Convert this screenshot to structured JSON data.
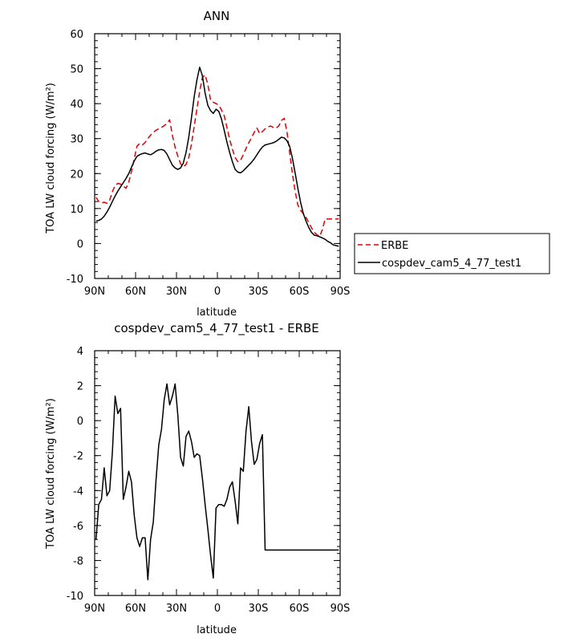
{
  "chart_data": [
    {
      "type": "line",
      "title": "ANN",
      "xlabel": "latitude",
      "ylabel": "TOA LW cloud forcing (W/m²)",
      "xlim": [
        90,
        -90
      ],
      "ylim": [
        -10,
        60
      ],
      "xticks": [
        {
          "value": 90,
          "label": "90N"
        },
        {
          "value": 60,
          "label": "60N"
        },
        {
          "value": 30,
          "label": "30N"
        },
        {
          "value": 0,
          "label": "0"
        },
        {
          "value": -30,
          "label": "30S"
        },
        {
          "value": -60,
          "label": "60S"
        },
        {
          "value": -90,
          "label": "90S"
        }
      ],
      "yticks": [
        {
          "value": -10,
          "label": "-10"
        },
        {
          "value": 0,
          "label": "0"
        },
        {
          "value": 10,
          "label": "10"
        },
        {
          "value": 20,
          "label": "20"
        },
        {
          "value": 30,
          "label": "30"
        },
        {
          "value": 40,
          "label": "40"
        },
        {
          "value": 50,
          "label": "50"
        },
        {
          "value": 60,
          "label": "60"
        }
      ],
      "legend": {
        "position": "right"
      },
      "series": [
        {
          "name": "ERBE",
          "color": "#e00000",
          "dash": true,
          "x": [
            89,
            87,
            85,
            83,
            81,
            79,
            77,
            75,
            73,
            71,
            69,
            67,
            65,
            63,
            61,
            59,
            57,
            55,
            53,
            51,
            49,
            47,
            45,
            43,
            41,
            39,
            37,
            35,
            33,
            31,
            29,
            27,
            25,
            23,
            21,
            19,
            17,
            15,
            13,
            11,
            9,
            7,
            5,
            3,
            1,
            -1,
            -3,
            -5,
            -7,
            -9,
            -11,
            -13,
            -15,
            -17,
            -19,
            -21,
            -23,
            -25,
            -27,
            -29,
            -31,
            -33,
            -35,
            -37,
            -39,
            -41,
            -43,
            -45,
            -47,
            -49,
            -51,
            -53,
            -55,
            -57,
            -59,
            -61,
            -63,
            -65,
            -67,
            -69,
            -71,
            -73,
            -75,
            -77,
            -79,
            -81,
            -83,
            -85,
            -87,
            -89
          ],
          "y": [
            13.2,
            12.0,
            11.6,
            11.8,
            11.5,
            12.4,
            14.8,
            16.6,
            17.2,
            17.0,
            16.4,
            15.8,
            17.5,
            20.6,
            24.2,
            27.8,
            28.6,
            28.2,
            28.9,
            30.0,
            31.0,
            31.8,
            32.4,
            32.8,
            33.2,
            33.7,
            34.3,
            35.4,
            31.0,
            27.5,
            25.0,
            22.8,
            22.0,
            22.6,
            24.5,
            28.5,
            33.5,
            38.5,
            43.5,
            47.5,
            48.2,
            45.5,
            41.0,
            40.4,
            40.0,
            39.6,
            38.2,
            36.6,
            33.2,
            29.8,
            27.0,
            24.6,
            23.4,
            23.8,
            25.4,
            27.2,
            28.8,
            30.2,
            31.8,
            33.0,
            31.4,
            32.0,
            32.8,
            33.3,
            33.6,
            33.2,
            33.0,
            33.6,
            35.2,
            35.8,
            32.0,
            26.0,
            20.0,
            15.0,
            11.0,
            9.5,
            8.5,
            7.5,
            6.0,
            4.5,
            3.2,
            2.5,
            2.0,
            4.0,
            7.0,
            7.0,
            7.0,
            7.0,
            7.0,
            7.0
          ]
        },
        {
          "name": "cospdev_cam5_4_77_test1",
          "color": "#000000",
          "dash": false,
          "x": [
            89,
            87,
            85,
            83,
            81,
            79,
            77,
            75,
            73,
            71,
            69,
            67,
            65,
            63,
            61,
            59,
            57,
            55,
            53,
            51,
            49,
            47,
            45,
            43,
            41,
            39,
            37,
            35,
            33,
            31,
            29,
            27,
            25,
            23,
            21,
            19,
            17,
            15,
            13,
            11,
            9,
            7,
            5,
            3,
            1,
            -1,
            -3,
            -5,
            -7,
            -9,
            -11,
            -13,
            -15,
            -17,
            -19,
            -21,
            -23,
            -25,
            -27,
            -29,
            -31,
            -33,
            -35,
            -37,
            -39,
            -41,
            -43,
            -45,
            -47,
            -49,
            -51,
            -53,
            -55,
            -57,
            -59,
            -61,
            -63,
            -65,
            -67,
            -69,
            -71,
            -73,
            -75,
            -77,
            -79,
            -81,
            -83,
            -85,
            -87,
            -89
          ],
          "y": [
            6.4,
            6.6,
            7.0,
            7.8,
            9.0,
            10.4,
            12.0,
            13.6,
            15.0,
            16.2,
            17.4,
            18.6,
            20.0,
            21.8,
            23.6,
            24.9,
            25.4,
            25.7,
            25.9,
            25.6,
            25.4,
            25.8,
            26.4,
            26.8,
            26.9,
            26.6,
            25.6,
            24.0,
            22.4,
            21.6,
            21.2,
            21.6,
            23.0,
            26.0,
            30.4,
            36.0,
            42.0,
            46.8,
            50.4,
            48.0,
            43.0,
            39.5,
            38.0,
            37.2,
            38.4,
            37.8,
            35.6,
            32.4,
            29.0,
            26.0,
            23.4,
            21.2,
            20.4,
            20.2,
            20.8,
            21.6,
            22.4,
            23.2,
            24.2,
            25.4,
            26.6,
            27.6,
            28.2,
            28.4,
            28.6,
            28.8,
            29.2,
            29.8,
            30.4,
            30.2,
            29.4,
            27.8,
            24.4,
            20.2,
            15.8,
            11.8,
            8.6,
            6.4,
            4.6,
            3.2,
            2.4,
            2.2,
            1.9,
            1.6,
            1.2,
            0.6,
            0.2,
            -0.4,
            -0.6,
            -0.8
          ]
        }
      ]
    },
    {
      "type": "line",
      "title": "cospdev_cam5_4_77_test1 - ERBE",
      "xlabel": "latitude",
      "ylabel": "TOA LW cloud forcing (W/m²)",
      "xlim": [
        90,
        -90
      ],
      "ylim": [
        -10,
        4
      ],
      "xticks": [
        {
          "value": 90,
          "label": "90N"
        },
        {
          "value": 60,
          "label": "60N"
        },
        {
          "value": 30,
          "label": "30N"
        },
        {
          "value": 0,
          "label": "0"
        },
        {
          "value": -30,
          "label": "30S"
        },
        {
          "value": -60,
          "label": "60S"
        },
        {
          "value": -90,
          "label": "90S"
        }
      ],
      "yticks": [
        {
          "value": -10,
          "label": "-10"
        },
        {
          "value": -8,
          "label": "-8"
        },
        {
          "value": -6,
          "label": "-6"
        },
        {
          "value": -4,
          "label": "-4"
        },
        {
          "value": -2,
          "label": "-2"
        },
        {
          "value": 0,
          "label": "0"
        },
        {
          "value": 2,
          "label": "2"
        },
        {
          "value": 4,
          "label": "4"
        }
      ],
      "series": [
        {
          "color": "#000000",
          "dash": false,
          "x": [
            89,
            87,
            85,
            83,
            81,
            79,
            77,
            75,
            73,
            71,
            69,
            67,
            65,
            63,
            61,
            59,
            57,
            55,
            53,
            51,
            49,
            47,
            45,
            43,
            41,
            39,
            37,
            35,
            33,
            31,
            29,
            27,
            25,
            23,
            21,
            19,
            17,
            15,
            13,
            11,
            9,
            7,
            5,
            3,
            1,
            -1,
            -3,
            -5,
            -7,
            -9,
            -11,
            -13,
            -15,
            -17,
            -19,
            -21,
            -23,
            -25,
            -27,
            -29,
            -31,
            -33,
            -35,
            -37,
            -39,
            -41,
            -43,
            -45,
            -47,
            -49,
            -51,
            -53,
            -55,
            -57,
            -59,
            -61,
            -63,
            -65,
            -67,
            -69,
            -71,
            -73,
            -75,
            -77,
            -79,
            -81,
            -83,
            -85,
            -87,
            -89
          ],
          "y": [
            -6.8,
            -4.8,
            -4.5,
            -2.7,
            -4.3,
            -4.0,
            -1.8,
            1.4,
            0.4,
            0.7,
            -4.5,
            -3.8,
            -2.9,
            -3.5,
            -5.4,
            -6.7,
            -7.2,
            -6.7,
            -6.7,
            -9.1,
            -6.8,
            -5.8,
            -3.4,
            -1.4,
            -0.5,
            1.2,
            2.1,
            0.9,
            1.4,
            2.1,
            0.3,
            -2.1,
            -2.6,
            -0.9,
            -0.6,
            -1.2,
            -2.1,
            -1.9,
            -2.0,
            -3.3,
            -4.8,
            -6.2,
            -7.7,
            -9.0,
            -5.0,
            -4.8,
            -4.8,
            -4.9,
            -4.5,
            -3.8,
            -3.5,
            -4.6,
            -5.9,
            -2.7,
            -2.9,
            -0.6,
            0.8,
            -1.2,
            -2.5,
            -2.2,
            -1.3,
            -0.8,
            -7.4,
            -7.4,
            -7.4,
            -7.4,
            -7.4,
            -7.4,
            -7.4,
            -7.4,
            -7.4,
            -7.4,
            -7.4,
            -7.4,
            -7.4,
            -7.4,
            -7.4,
            -7.4,
            -7.4,
            -7.4,
            -7.4,
            -7.4,
            -7.4,
            -7.4,
            -7.4,
            -7.4,
            -7.4,
            -7.4,
            -7.4,
            -7.4
          ]
        }
      ]
    }
  ]
}
